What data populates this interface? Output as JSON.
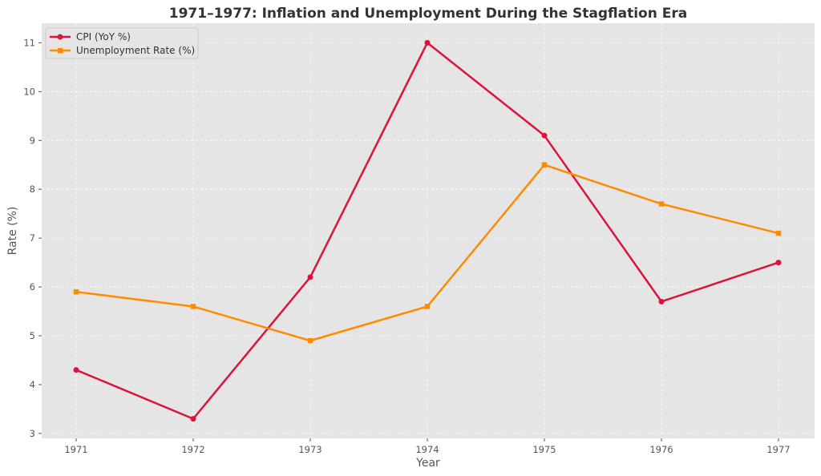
{
  "chart_data": {
    "type": "line",
    "title": "1971–1977: Inflation and Unemployment During the Stagflation Era",
    "xlabel": "Year",
    "ylabel": "Rate (%)",
    "x": [
      "1971",
      "1972",
      "1973",
      "1974",
      "1975",
      "1976",
      "1977"
    ],
    "yticks": [
      "3",
      "4",
      "5",
      "6",
      "7",
      "8",
      "9",
      "10",
      "11"
    ],
    "ylim": [
      2.9,
      11.4
    ],
    "grid": true,
    "legend_position": "top-left",
    "series": [
      {
        "name": "CPI (YoY %)",
        "color": "#dc143c",
        "marker": "circle",
        "values": [
          4.3,
          3.3,
          6.2,
          11.0,
          9.1,
          5.7,
          6.5
        ]
      },
      {
        "name": "Unemployment Rate (%)",
        "color": "#ff8c00",
        "marker": "square",
        "values": [
          5.9,
          5.6,
          4.9,
          5.6,
          8.5,
          7.7,
          7.1
        ]
      }
    ]
  }
}
